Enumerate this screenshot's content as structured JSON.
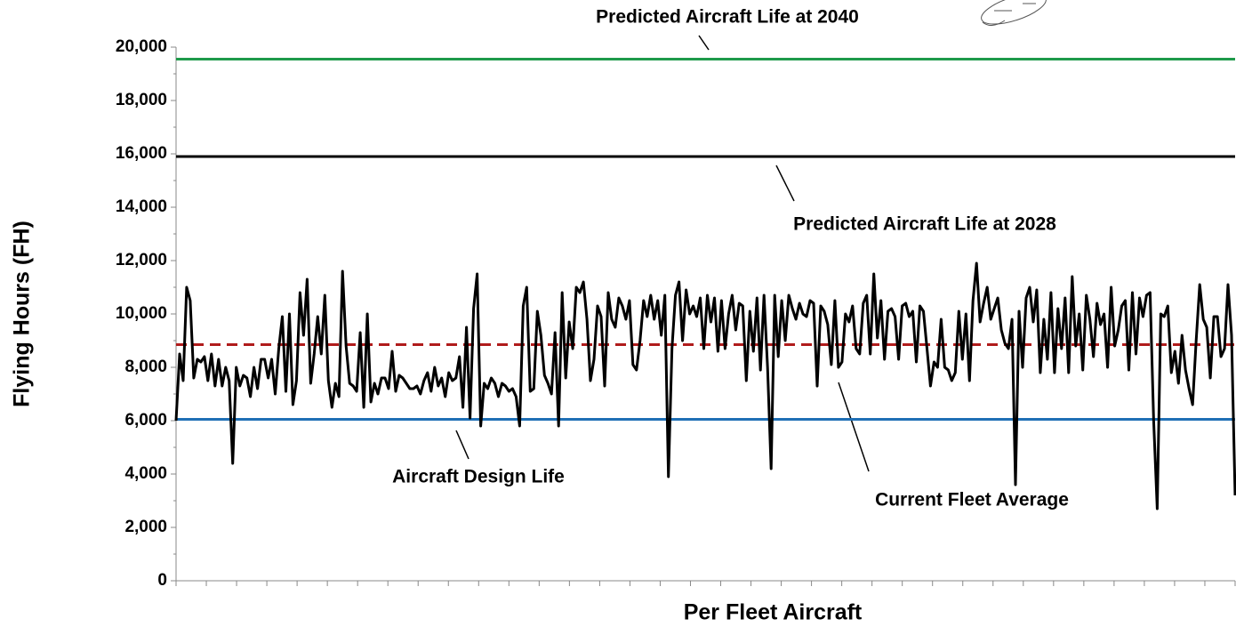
{
  "chart_data": {
    "type": "line",
    "ylabel": "Flying Hours (FH)",
    "xlabel": "Per Fleet Aircraft",
    "ylim": [
      0,
      20000
    ],
    "yticks": [
      0,
      {
        "value": 2000,
        "label": "2,000"
      },
      {
        "value": 4000,
        "label": "4,000"
      },
      {
        "value": 6000,
        "label": "6,000"
      },
      {
        "value": 8000,
        "label": "8,000"
      },
      {
        "value": 10000,
        "label": "10,000"
      },
      {
        "value": 12000,
        "label": "12,000"
      },
      {
        "value": 14000,
        "label": "14,000"
      },
      {
        "value": 16000,
        "label": "16,000"
      },
      {
        "value": 18000,
        "label": "18,000"
      },
      {
        "value": 20000,
        "label": "20,000"
      }
    ],
    "reference_lines": [
      {
        "label": "Predicted Aircraft Life at 2040",
        "value": 19550,
        "color": "#1e9a4a",
        "dashed": false
      },
      {
        "label": "Predicted Aircraft Life at 2028",
        "value": 15900,
        "color": "#000000",
        "dashed": false
      },
      {
        "label": "Current Fleet Average",
        "value": 8850,
        "color": "#b01c1c",
        "dashed": true
      },
      {
        "label": "Aircraft Design Life",
        "value": 6050,
        "color": "#1f6fb5",
        "dashed": false
      }
    ],
    "color": "#000000",
    "values": [
      6000,
      8500,
      7500,
      11000,
      10500,
      7600,
      8300,
      8200,
      8400,
      7500,
      8500,
      7300,
      8300,
      7300,
      8000,
      7500,
      4400,
      8000,
      7300,
      7700,
      7600,
      6900,
      8000,
      7200,
      8300,
      8300,
      7600,
      8300,
      7000,
      8700,
      9900,
      7100,
      10000,
      6600,
      7500,
      10800,
      9200,
      11300,
      7400,
      8500,
      9900,
      8500,
      10700,
      7500,
      6500,
      7400,
      6900,
      11600,
      8800,
      7400,
      7300,
      7100,
      9300,
      6500,
      10000,
      6700,
      7400,
      7000,
      7600,
      7600,
      7200,
      8600,
      7100,
      7700,
      7600,
      7400,
      7200,
      7200,
      7300,
      7000,
      7500,
      7800,
      7100,
      8000,
      7300,
      7600,
      6900,
      7800,
      7500,
      7600,
      8400,
      6500,
      9500,
      6100,
      10200,
      11500,
      5800,
      7400,
      7200,
      7600,
      7400,
      6900,
      7400,
      7300,
      7100,
      7200,
      6900,
      5800,
      10300,
      11000,
      7100,
      7200,
      10100,
      9200,
      7700,
      7400,
      7000,
      9300,
      5800,
      10800,
      7600,
      9700,
      8700,
      11000,
      10800,
      11200,
      9800,
      7500,
      8300,
      10300,
      9900,
      7300,
      10800,
      9800,
      9500,
      10600,
      10300,
      9800,
      10500,
      8100,
      7900,
      9000,
      10500,
      9900,
      10700,
      9800,
      10500,
      9200,
      10700,
      3900,
      8700,
      10700,
      11200,
      9000,
      10900,
      10000,
      10300,
      9900,
      10600,
      8700,
      10700,
      9700,
      10600,
      8600,
      10500,
      8700,
      10000,
      10700,
      9400,
      10400,
      10300,
      7500,
      10100,
      8600,
      10600,
      7900,
      10700,
      8000,
      4200,
      10700,
      8400,
      10500,
      9000,
      10700,
      10200,
      9800,
      10400,
      10000,
      9900,
      10500,
      10400,
      7300,
      10300,
      10100,
      9600,
      8100,
      10500,
      8000,
      8200,
      10000,
      9700,
      10300,
      8700,
      8500,
      10400,
      10700,
      8500,
      11500,
      9100,
      10500,
      8300,
      10100,
      10200,
      9900,
      8300,
      10300,
      10400,
      9900,
      10100,
      8200,
      10300,
      10100,
      8700,
      7300,
      8200,
      8000,
      9800,
      8000,
      7900,
      7500,
      7800,
      10100,
      8300,
      10000,
      7500,
      10500,
      11900,
      9700,
      10400,
      11000,
      9800,
      10200,
      10600,
      9400,
      8900,
      8700,
      9800,
      3600,
      10100,
      8000,
      10600,
      11000,
      9700,
      10900,
      7800,
      9800,
      8300,
      10800,
      7800,
      10200,
      8700,
      10600,
      7800,
      11400,
      8800,
      10000,
      7900,
      10700,
      9800,
      8400,
      10400,
      9600,
      10000,
      8000,
      11000,
      8800,
      9400,
      10300,
      10500,
      7900,
      10800,
      8500,
      10600,
      9900,
      10700,
      10800,
      6000,
      2700,
      10000,
      9900,
      10300,
      7800,
      8600,
      7400,
      9200,
      7900,
      7200,
      6600,
      9000,
      11100,
      9800,
      9500,
      7600,
      9900,
      9900,
      8400,
      8700,
      11100,
      9200,
      3200
    ]
  }
}
